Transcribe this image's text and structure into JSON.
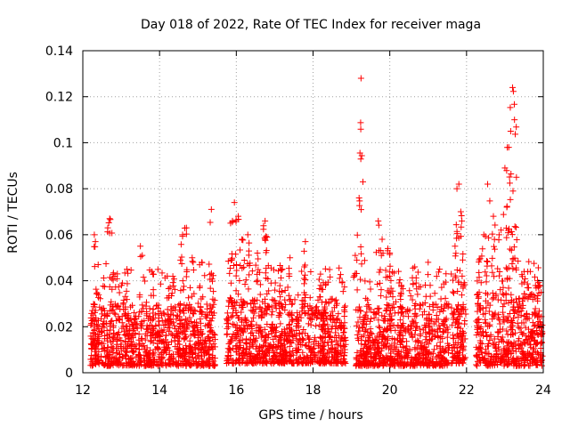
{
  "chart_data": {
    "type": "scatter",
    "title": "Day 018 of 2022, Rate Of TEC Index for receiver maga",
    "xlabel": "GPS time / hours",
    "ylabel": "ROTI / TECUs",
    "xlim": [
      12,
      24
    ],
    "ylim": [
      0,
      0.14
    ],
    "xticks": [
      12,
      14,
      16,
      18,
      20,
      22,
      24
    ],
    "xtick_labels": [
      "12",
      "14",
      "16",
      "18",
      "20",
      "22",
      "24"
    ],
    "yticks": [
      0,
      0.02,
      0.04,
      0.06,
      0.08,
      0.1,
      0.12,
      0.14
    ],
    "ytick_labels": [
      "0",
      "0.02",
      "0.04",
      "0.06",
      "0.08",
      "0.1",
      "0.12",
      "0.14"
    ],
    "grid": true,
    "marker": "+",
    "color": "#ff0000",
    "series": [
      {
        "name": "ROTI",
        "segments": [
          {
            "x": [
              12.2,
              15.45
            ],
            "base": [
              0.003,
              0.03
            ],
            "peaks": [
              [
                12.3,
                0.06
              ],
              [
                12.4,
                0.047
              ],
              [
                12.65,
                0.063
              ],
              [
                12.7,
                0.067
              ],
              [
                12.9,
                0.043
              ],
              [
                13.15,
                0.045
              ],
              [
                13.5,
                0.055
              ],
              [
                13.8,
                0.044
              ],
              [
                14.2,
                0.042
              ],
              [
                14.6,
                0.06
              ],
              [
                14.7,
                0.063
              ],
              [
                14.85,
                0.05
              ],
              [
                15.1,
                0.048
              ],
              [
                15.35,
                0.071
              ]
            ]
          },
          {
            "x": [
              15.75,
              18.85
            ],
            "base": [
              0.004,
              0.032
            ],
            "peaks": [
              [
                15.85,
                0.065
              ],
              [
                15.95,
                0.074
              ],
              [
                16.05,
                0.068
              ],
              [
                16.15,
                0.058
              ],
              [
                16.3,
                0.06
              ],
              [
                16.55,
                0.052
              ],
              [
                16.75,
                0.066
              ],
              [
                16.8,
                0.059
              ],
              [
                17.2,
                0.045
              ],
              [
                17.4,
                0.05
              ],
              [
                17.8,
                0.057
              ],
              [
                18.2,
                0.038
              ],
              [
                18.5,
                0.032
              ]
            ]
          },
          {
            "x": [
              19.1,
              21.55
            ],
            "base": [
              0.003,
              0.03
            ],
            "peaks": [
              [
                19.1,
                0.051
              ],
              [
                19.2,
                0.076
              ],
              [
                19.3,
                0.083
              ],
              [
                19.25,
                0.128
              ],
              [
                19.7,
                0.066
              ],
              [
                19.8,
                0.058
              ],
              [
                19.95,
                0.054
              ],
              [
                20.0,
                0.052
              ],
              [
                20.3,
                0.038
              ],
              [
                20.65,
                0.046
              ],
              [
                21.0,
                0.048
              ],
              [
                21.3,
                0.045
              ]
            ]
          },
          {
            "x": [
              21.6,
              21.98
            ],
            "base": [
              0.004,
              0.03
            ],
            "peaks": [
              [
                21.7,
                0.055
              ],
              [
                21.75,
                0.08
              ],
              [
                21.8,
                0.082
              ],
              [
                21.85,
                0.07
              ],
              [
                21.9,
                0.049
              ]
            ]
          },
          {
            "x": [
              22.25,
              23.98
            ],
            "base": [
              0.003,
              0.035
            ],
            "peaks": [
              [
                22.45,
                0.06
              ],
              [
                22.55,
                0.082
              ],
              [
                22.7,
                0.068
              ],
              [
                22.9,
                0.062
              ],
              [
                23.0,
                0.089
              ],
              [
                23.05,
                0.072
              ],
              [
                23.1,
                0.098
              ],
              [
                23.15,
                0.105
              ],
              [
                23.2,
                0.124
              ],
              [
                23.25,
                0.11
              ],
              [
                23.3,
                0.085
              ],
              [
                23.5,
                0.044
              ],
              [
                23.85,
                0.04
              ]
            ]
          }
        ]
      }
    ]
  }
}
